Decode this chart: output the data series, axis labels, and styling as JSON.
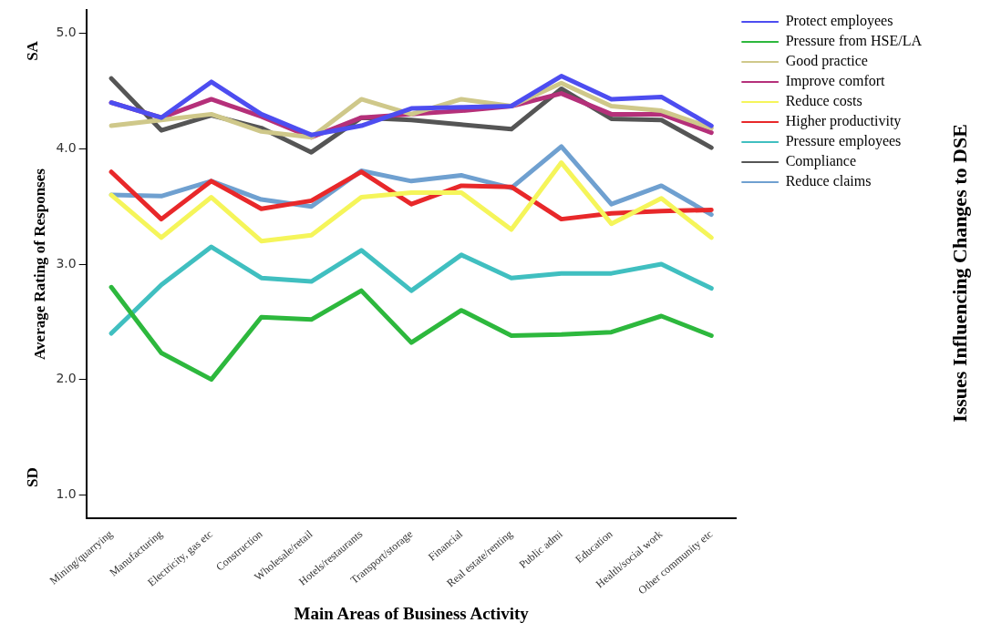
{
  "chart_data": {
    "type": "line",
    "xlabel": "Main Areas of Business Activity",
    "ylabel": "Average Rating of Responses",
    "legend_title": "Issues Influencing Changes to DSE",
    "categories": [
      "Mining/quarrying",
      "Manufacturing",
      "Electricity, gas etc",
      "Construction",
      "Wholesale/retail",
      "Hotels/restaurants",
      "Transport/storage",
      "Financial",
      "Real estate/renting",
      "Public admi",
      "Education",
      "Health/social work",
      "Other community etc"
    ],
    "series": [
      {
        "name": "Protect employees",
        "color": "#4d4df0",
        "values": [
          4.4,
          4.27,
          4.58,
          4.3,
          4.12,
          4.2,
          4.35,
          4.36,
          4.37,
          4.63,
          4.43,
          4.45,
          4.2
        ]
      },
      {
        "name": "Pressure from HSE/LA",
        "color": "#2db83d",
        "values": [
          2.8,
          2.23,
          2.0,
          2.54,
          2.52,
          2.77,
          2.32,
          2.6,
          2.38,
          2.39,
          2.41,
          2.55,
          2.38
        ]
      },
      {
        "name": "Good practice",
        "color": "#cfc88a",
        "values": [
          4.2,
          4.25,
          4.3,
          4.15,
          4.1,
          4.43,
          4.3,
          4.43,
          4.37,
          4.57,
          4.37,
          4.33,
          4.18
        ]
      },
      {
        "name": "Improve comfort",
        "color": "#b5307a",
        "values": [
          4.4,
          4.27,
          4.43,
          4.28,
          4.1,
          4.27,
          4.3,
          4.33,
          4.37,
          4.48,
          4.3,
          4.3,
          4.14
        ]
      },
      {
        "name": "Reduce costs",
        "color": "#f5f55a",
        "values": [
          3.6,
          3.23,
          3.58,
          3.2,
          3.25,
          3.58,
          3.62,
          3.62,
          3.3,
          3.88,
          3.35,
          3.57,
          3.23
        ]
      },
      {
        "name": "Higher productivity",
        "color": "#e8282a",
        "values": [
          3.8,
          3.39,
          3.72,
          3.48,
          3.55,
          3.8,
          3.52,
          3.68,
          3.67,
          3.39,
          3.44,
          3.46,
          3.47
        ]
      },
      {
        "name": "Pressure employees",
        "color": "#40bfc0",
        "values": [
          2.4,
          2.82,
          3.15,
          2.88,
          2.85,
          3.12,
          2.77,
          3.08,
          2.88,
          2.92,
          2.92,
          3.0,
          2.79
        ]
      },
      {
        "name": "Compliance",
        "color": "#555555",
        "values": [
          4.61,
          4.16,
          4.29,
          4.18,
          3.97,
          4.27,
          4.25,
          4.21,
          4.17,
          4.52,
          4.26,
          4.25,
          4.01
        ]
      },
      {
        "name": "Reduce claims",
        "color": "#6fa0d0",
        "values": [
          3.6,
          3.59,
          3.72,
          3.56,
          3.5,
          3.81,
          3.72,
          3.77,
          3.66,
          4.02,
          3.52,
          3.68,
          3.43
        ]
      }
    ],
    "ylim": [
      0.8,
      5.2
    ],
    "yticks": [
      {
        "value": 1,
        "label": "1.0"
      },
      {
        "value": 2,
        "label": "2.0"
      },
      {
        "value": 3,
        "label": "3.0"
      },
      {
        "value": 4,
        "label": "4.0"
      },
      {
        "value": 5,
        "label": "5.0"
      }
    ],
    "annotations": [
      "SA",
      "SD"
    ],
    "grid": false,
    "legend": "top right",
    "marker": "none",
    "line_style": "solid"
  }
}
